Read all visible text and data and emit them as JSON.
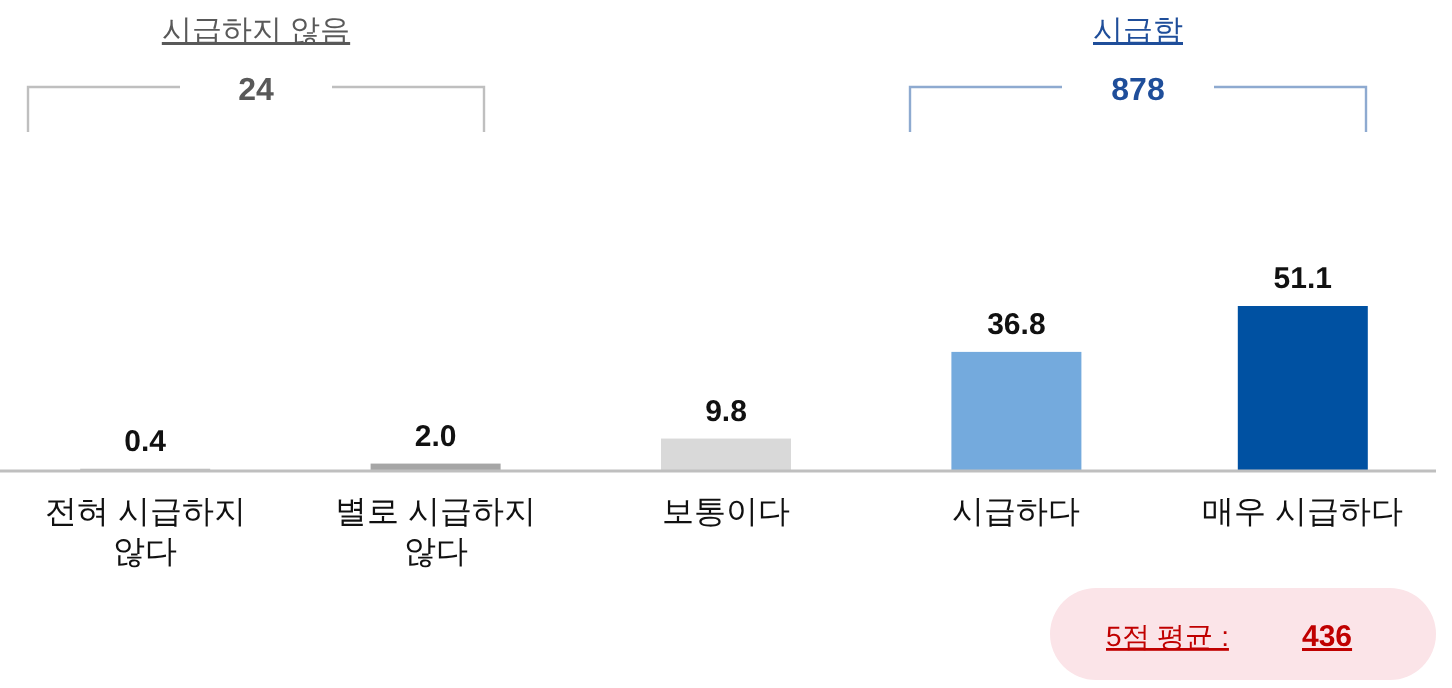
{
  "chart_data": {
    "type": "bar",
    "categories": [
      "전혀 시급하지 않다",
      "별로 시급하지 않다",
      "보통이다",
      "시급하다",
      "매우 시급하다"
    ],
    "values": [
      0.4,
      2.0,
      9.8,
      36.8,
      51.1
    ],
    "colors": [
      "#bfbfbf",
      "#a6a6a6",
      "#d9d9d9",
      "#74aadd",
      "#0051a2"
    ],
    "value_labels": [
      "0.4",
      "2.0",
      "9.8",
      "36.8",
      "51.1"
    ],
    "annotations": [
      "시급하지 않음",
      "24",
      "시급함",
      "878",
      "5점 평균 :",
      "436"
    ]
  }
}
